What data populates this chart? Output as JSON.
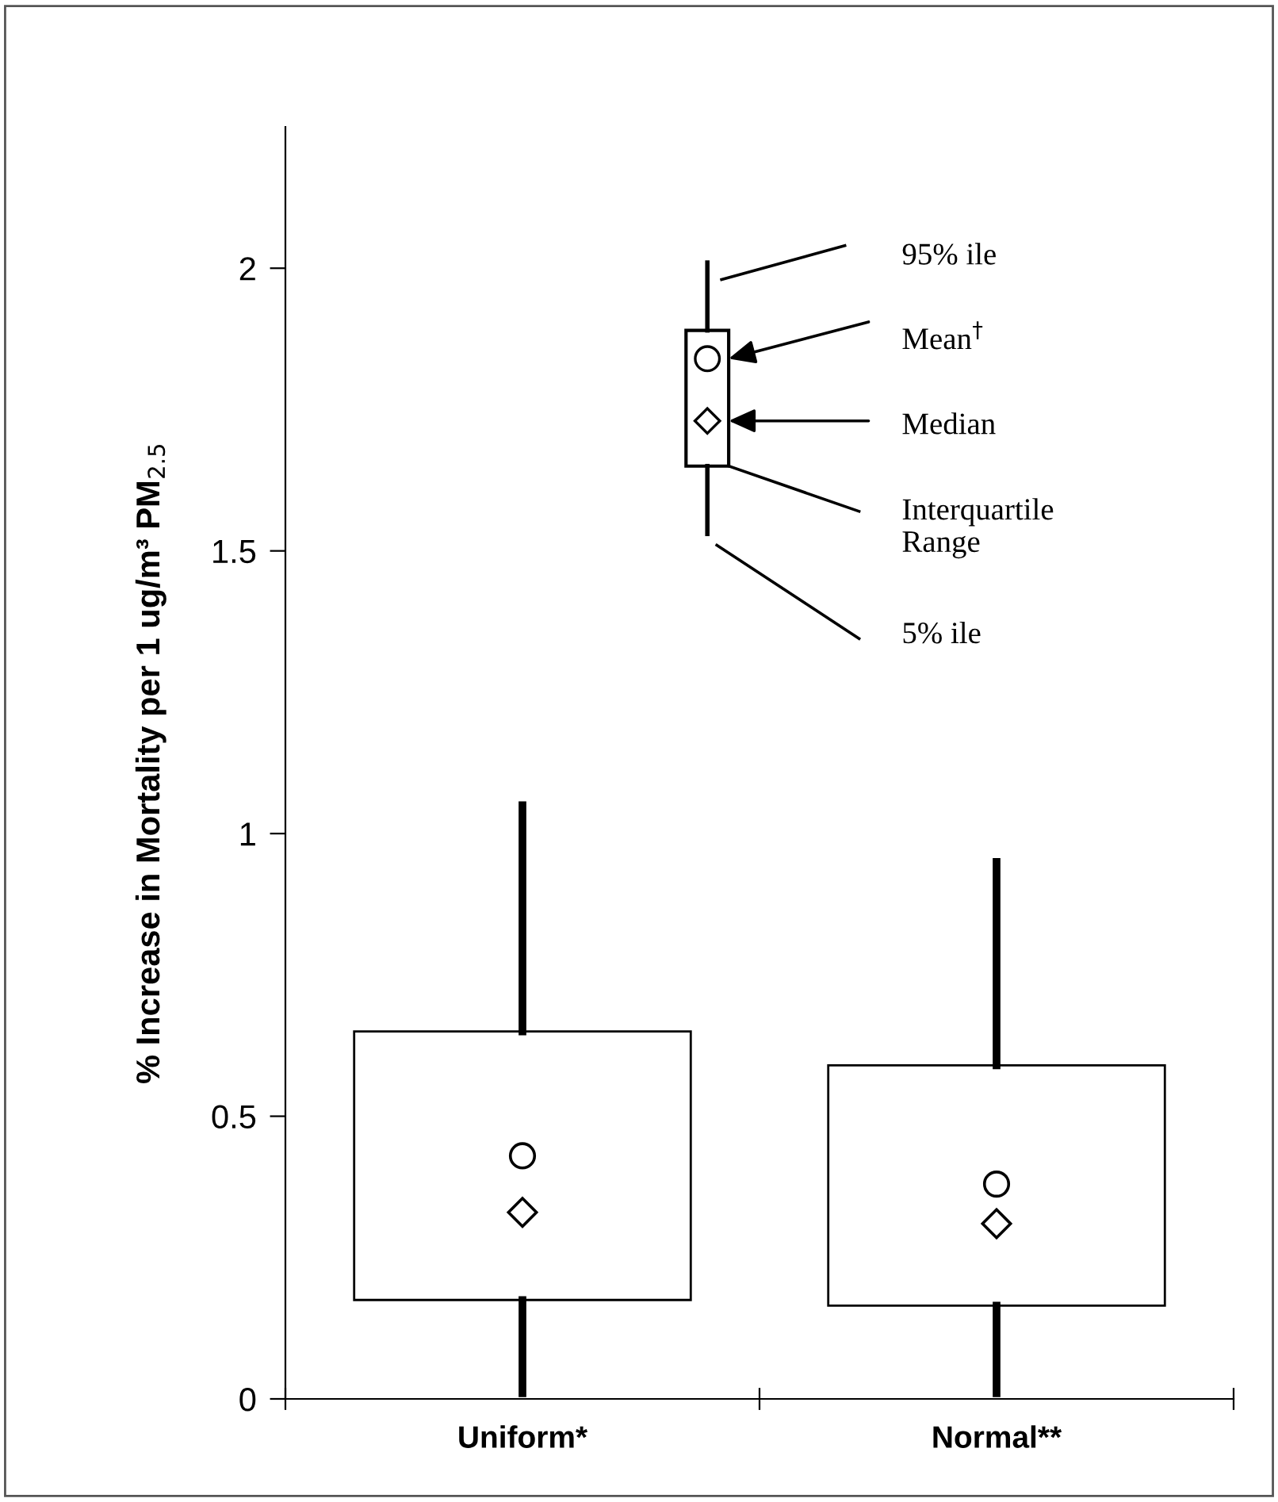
{
  "chart_data": {
    "type": "box",
    "categories": [
      "Uniform*",
      "Normal**"
    ],
    "ylabel": "% Increase in Mortality per 1 ug/m³ PM$_{2.5}$",
    "ylim": [
      0,
      2.25
    ],
    "yticks": [
      0,
      0.5,
      1,
      1.5,
      2
    ],
    "boxes": [
      {
        "low": 0.01,
        "q1": 0.175,
        "median": 0.33,
        "q3": 0.65,
        "high": 1.05,
        "mean": 0.43
      },
      {
        "low": 0.01,
        "q1": 0.165,
        "median": 0.31,
        "q3": 0.59,
        "high": 0.95,
        "mean": 0.38
      }
    ],
    "grid": false,
    "annotations": [
      "95% ile",
      "Mean$^{†}$",
      "Median",
      "Interquartile\nRange",
      "5% ile"
    ]
  }
}
